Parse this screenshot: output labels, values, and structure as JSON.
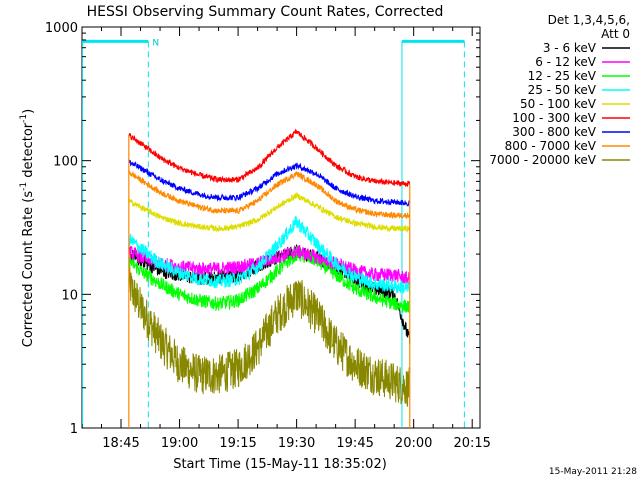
{
  "chart_data": {
    "type": "line",
    "title": "HESSI Observing Summary Count Rates, Corrected",
    "xlabel": "Start Time (15-May-11 18:35:02)",
    "ylabel": "Corrected Count Rate (s",
    "ylabel_sup1": "-1",
    "ylabel_mid": " detector",
    "ylabel_sup2": "-1",
    "ylabel_end": ")",
    "y_scale": "log",
    "ylim": [
      1,
      1000
    ],
    "xlim": [
      "18:35",
      "20:17"
    ],
    "x_ticks": [
      "18:45",
      "19:00",
      "19:15",
      "19:30",
      "19:45",
      "20:00",
      "20:15"
    ],
    "y_ticks": [
      "1",
      "10",
      "100",
      "1000"
    ],
    "legend": {
      "placement": "right",
      "header_lines": [
        "Det 1,3,4,5,6,",
        "Att 0"
      ]
    },
    "data_window": [
      "18:47",
      "19:59"
    ],
    "night_markers": [
      {
        "start": "18:35",
        "end": "18:52",
        "label": "N"
      },
      {
        "start": "19:57",
        "end": "20:13",
        "label": ""
      }
    ],
    "series": [
      {
        "name": "3 - 6 keV",
        "color": "#000000",
        "x": [
          "18:47",
          "18:50",
          "18:55",
          "19:00",
          "19:05",
          "19:10",
          "19:15",
          "19:20",
          "19:25",
          "19:30",
          "19:35",
          "19:40",
          "19:45",
          "19:50",
          "19:55",
          "19:59"
        ],
        "values": [
          20,
          18,
          15,
          14,
          13,
          13.5,
          14,
          16,
          19,
          21,
          19,
          16,
          13,
          11,
          10,
          4.5
        ]
      },
      {
        "name": "6 - 12 keV",
        "color": "#ff00ff",
        "x": [
          "18:47",
          "18:50",
          "18:55",
          "19:00",
          "19:05",
          "19:10",
          "19:15",
          "19:20",
          "19:25",
          "19:30",
          "19:35",
          "19:40",
          "19:45",
          "19:50",
          "19:55",
          "19:59"
        ],
        "values": [
          21,
          19,
          17,
          16,
          15.5,
          15.5,
          16,
          17,
          19,
          21,
          19,
          17,
          15,
          14,
          14,
          13
        ]
      },
      {
        "name": "12 - 25 keV",
        "color": "#00ff00",
        "x": [
          "18:47",
          "18:50",
          "18:55",
          "19:00",
          "19:05",
          "19:10",
          "19:15",
          "19:20",
          "19:25",
          "19:30",
          "19:35",
          "19:40",
          "19:45",
          "19:50",
          "19:55",
          "19:59"
        ],
        "values": [
          18,
          15,
          12,
          10,
          9,
          8.5,
          9,
          11,
          15,
          20,
          18,
          14,
          11,
          9.5,
          8.5,
          8
        ]
      },
      {
        "name": "25 - 50 keV",
        "color": "#00ffff",
        "x": [
          "18:47",
          "18:50",
          "18:55",
          "19:00",
          "19:05",
          "19:10",
          "19:15",
          "19:20",
          "19:25",
          "19:30",
          "19:35",
          "19:40",
          "19:45",
          "19:50",
          "19:55",
          "19:59"
        ],
        "values": [
          26,
          22,
          17,
          14.5,
          13,
          12.5,
          13,
          16,
          23,
          35,
          24,
          17,
          13.5,
          12,
          11.5,
          11
        ]
      },
      {
        "name": "50 - 100 keV",
        "color": "#dddd00",
        "x": [
          "18:47",
          "18:50",
          "18:55",
          "19:00",
          "19:05",
          "19:10",
          "19:15",
          "19:20",
          "19:25",
          "19:30",
          "19:35",
          "19:40",
          "19:45",
          "19:50",
          "19:55",
          "19:59"
        ],
        "values": [
          50,
          45,
          38,
          34,
          32,
          31,
          32,
          36,
          45,
          55,
          46,
          38,
          34,
          32,
          31,
          31
        ]
      },
      {
        "name": "100 - 300 keV",
        "color": "#ff0000",
        "x": [
          "18:47",
          "18:50",
          "18:55",
          "19:00",
          "19:05",
          "19:10",
          "19:15",
          "19:20",
          "19:25",
          "19:30",
          "19:35",
          "19:40",
          "19:45",
          "19:50",
          "19:55",
          "19:59"
        ],
        "values": [
          155,
          135,
          105,
          88,
          78,
          72,
          72,
          88,
          125,
          165,
          125,
          92,
          76,
          70,
          68,
          67
        ]
      },
      {
        "name": "300 - 800 keV",
        "color": "#0000ff",
        "x": [
          "18:47",
          "18:50",
          "18:55",
          "19:00",
          "19:05",
          "19:10",
          "19:15",
          "19:20",
          "19:25",
          "19:30",
          "19:35",
          "19:40",
          "19:45",
          "19:50",
          "19:55",
          "19:59"
        ],
        "values": [
          98,
          88,
          72,
          62,
          56,
          53,
          53,
          62,
          80,
          92,
          80,
          62,
          54,
          50,
          49,
          48
        ]
      },
      {
        "name": "800 - 7000 keV",
        "color": "#ff8800",
        "x": [
          "18:47",
          "18:50",
          "18:55",
          "19:00",
          "19:05",
          "19:10",
          "19:15",
          "19:20",
          "19:25",
          "19:30",
          "19:35",
          "19:40",
          "19:45",
          "19:50",
          "19:55",
          "19:59"
        ],
        "values": [
          82,
          72,
          58,
          50,
          45,
          42,
          42,
          50,
          66,
          80,
          66,
          50,
          43,
          40,
          39,
          39
        ]
      },
      {
        "name": "7000 - 20000 keV",
        "color": "#888800",
        "x": [
          "18:47",
          "18:50",
          "18:55",
          "19:00",
          "19:05",
          "19:10",
          "19:15",
          "19:20",
          "19:25",
          "19:30",
          "19:35",
          "19:40",
          "19:45",
          "19:50",
          "19:55",
          "19:59"
        ],
        "values": [
          12,
          8,
          4.5,
          3,
          2.5,
          2.5,
          2.8,
          4,
          7,
          10,
          7,
          4.2,
          3,
          2.5,
          2.2,
          2
        ]
      }
    ]
  },
  "footer_timestamp": "15-May-2011 21:28"
}
